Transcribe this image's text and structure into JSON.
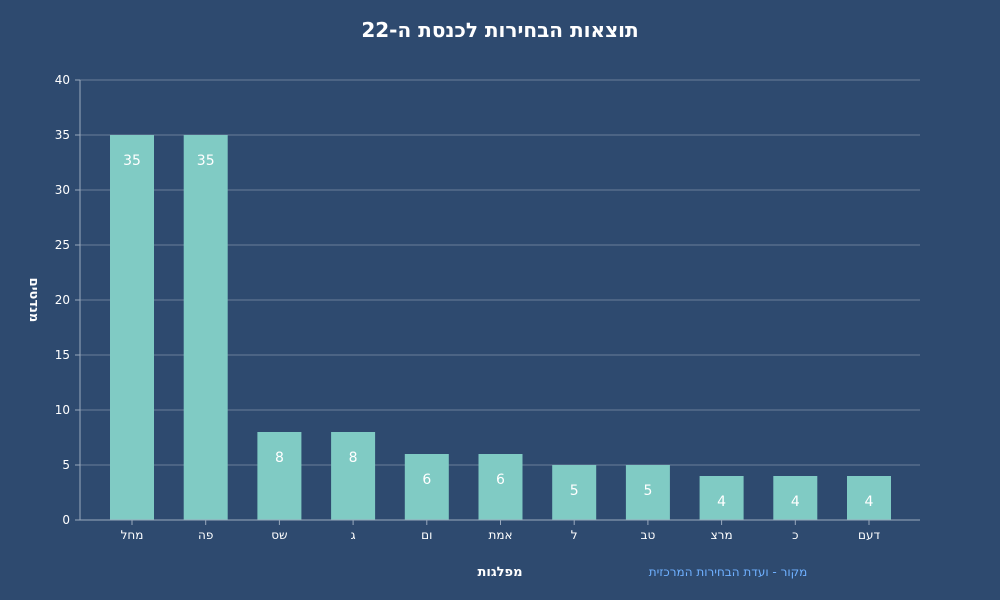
{
  "chart_data": {
    "type": "bar",
    "title": "תוצאות הבחירות לכנסת ה-22",
    "xlabel": "מפלגות",
    "ylabel": "מנדטים",
    "source": "מקור - ועדת הבחירות המרכזית",
    "categories": [
      "מחל",
      "פה",
      "שס",
      "ג",
      "ום",
      "אמת",
      "ל",
      "טב",
      "מרצ",
      "כ",
      "דעם"
    ],
    "values": [
      35,
      35,
      8,
      8,
      6,
      6,
      5,
      5,
      4,
      4,
      4
    ],
    "ylim": [
      0,
      40
    ],
    "yticks": [
      0,
      5,
      10,
      15,
      20,
      25,
      30,
      35,
      40
    ],
    "grid": true,
    "bar_color": "#80cbc4",
    "grid_color": "#6a7f99",
    "background": "#2e4a6f"
  }
}
